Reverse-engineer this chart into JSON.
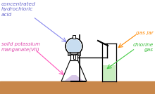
{
  "bg_color": "#ffffff",
  "table_color": "#c8874a",
  "label_colors": {
    "hcl": "#6666cc",
    "kmno4": "#dd44aa",
    "gas_jar": "#ff8800",
    "chlorine": "#33bb33"
  },
  "arrow_colors": {
    "hcl": "#8888ee",
    "kmno4": "#ff55bb",
    "gas_jar": "#ff8800",
    "chlorine": "#44cc44"
  },
  "labels": {
    "hcl": "concentrated\nhydrochloric\nacid",
    "kmno4": "solid potassium\nmanganate(VII)",
    "gas_jar": "gas jar",
    "chlorine": "chlorine\ngas"
  }
}
